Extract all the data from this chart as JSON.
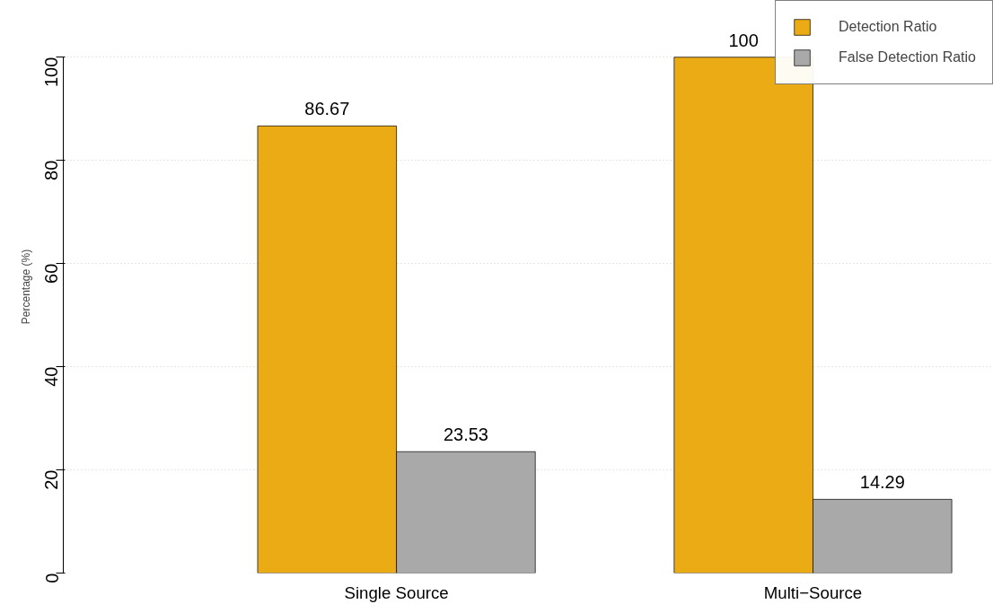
{
  "chart_data": {
    "type": "bar",
    "ylabel": "Percentage (%)",
    "categories": [
      "Single Source",
      "Multi−Source"
    ],
    "series": [
      {
        "name": "Detection Ratio",
        "color": "#eaab14",
        "values": [
          86.67,
          100
        ]
      },
      {
        "name": "False Detection Ratio",
        "color": "#a9a9a9",
        "values": [
          23.53,
          14.29
        ]
      }
    ],
    "ylim": [
      0,
      111
    ],
    "yticks": [
      0,
      20,
      40,
      60,
      80,
      100
    ],
    "grid": "y",
    "legend": "top right",
    "data_labels": true
  }
}
